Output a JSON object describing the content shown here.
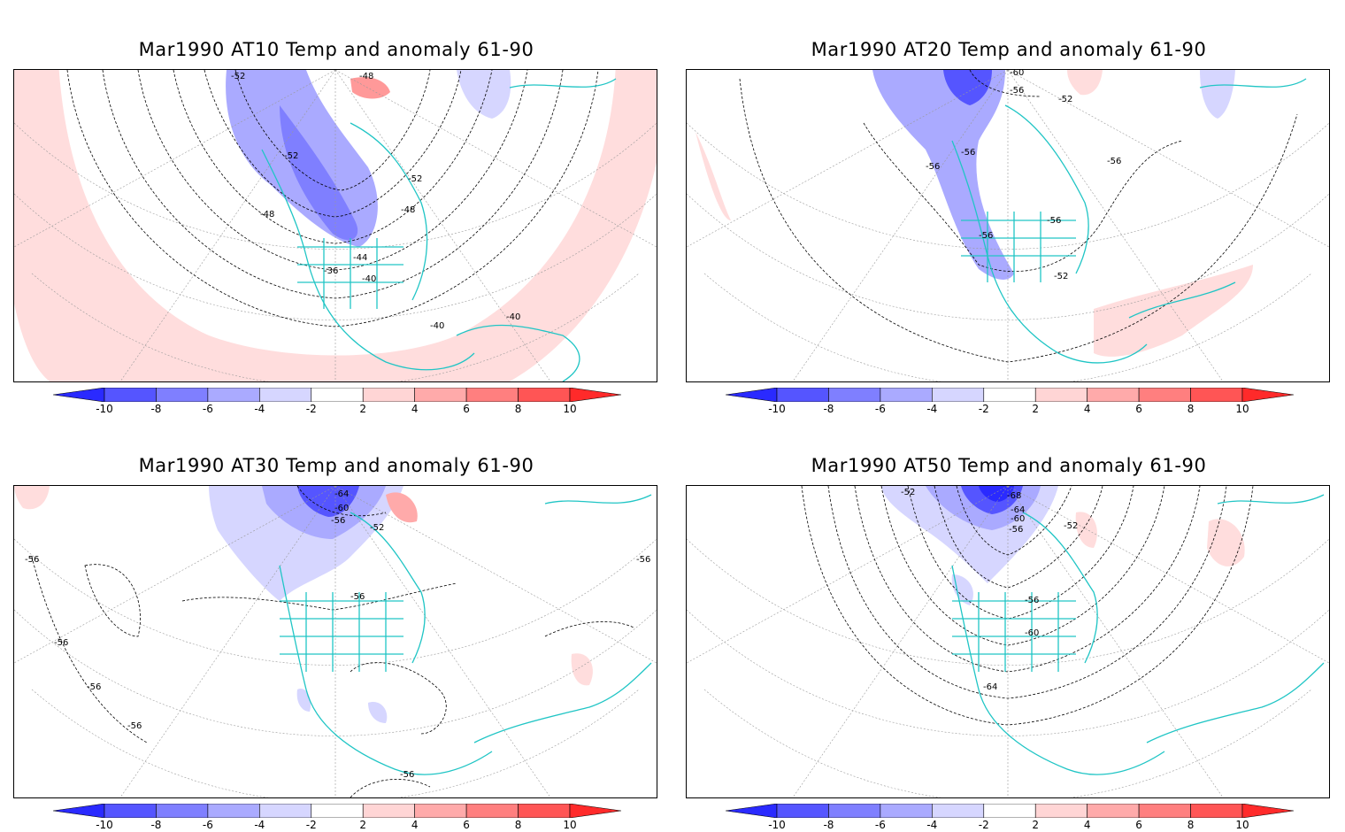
{
  "colorbar": {
    "levels": [
      "-10",
      "-8",
      "-6",
      "-4",
      "-2",
      "2",
      "4",
      "6",
      "8",
      "10"
    ],
    "colors": [
      "#2a2aff",
      "#5555ff",
      "#7f7fff",
      "#aaaaff",
      "#d6d6ff",
      "#ffffff",
      "#ffd5d5",
      "#ffaaaa",
      "#ff7f7f",
      "#ff5555",
      "#ff2a2a"
    ]
  },
  "style": {
    "coast_color": "#20c5c5",
    "contour_color": "#000000",
    "grid_color": "#999999"
  },
  "panels": [
    {
      "title": "Mar1990 AT10 Temp and anomaly 61-90",
      "contour_labels": [
        "-52",
        "-48",
        "-52",
        "-52",
        "-48",
        "-48",
        "-44",
        "-36",
        "-40",
        "-40",
        "-40"
      ]
    },
    {
      "title": "Mar1990 AT20 Temp and anomaly 61-90",
      "contour_labels": [
        "-60",
        "-56",
        "-52",
        "-56",
        "-56",
        "-56",
        "-56",
        "-56",
        "-52"
      ]
    },
    {
      "title": "Mar1990 AT30 Temp and anomaly 61-90",
      "contour_labels": [
        "-64",
        "-60",
        "-56",
        "-52",
        "-56",
        "-56",
        "-56",
        "-56",
        "-56",
        "-56",
        "-56"
      ]
    },
    {
      "title": "Mar1990 AT50 Temp and anomaly 61-90",
      "contour_labels": [
        "-52",
        "-68",
        "-64",
        "-60",
        "-56",
        "-52",
        "-56",
        "-60",
        "-64"
      ]
    }
  ]
}
